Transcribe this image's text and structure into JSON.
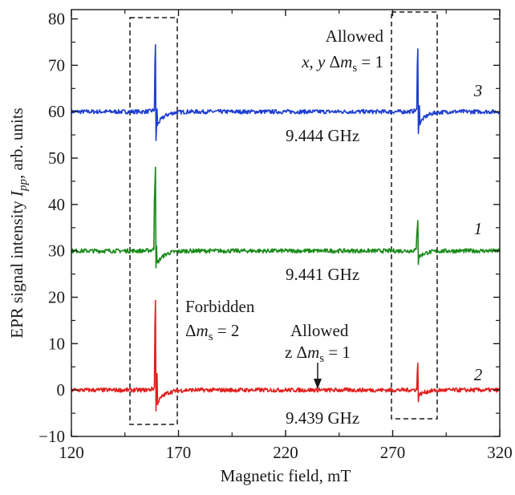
{
  "chart_data": {
    "type": "line",
    "title": "",
    "xlabel": "Magnetic field, mT",
    "ylabel_parts": [
      "EPR signal intensity ",
      "I",
      "pp",
      ", arb. units"
    ],
    "xlim": [
      120,
      320
    ],
    "ylim": [
      -10,
      82
    ],
    "xticks": [
      "120",
      "170",
      "220",
      "270",
      "320"
    ],
    "yticks": [
      "−10",
      "0",
      "10",
      "20",
      "30",
      "40",
      "50",
      "60",
      "70",
      "80"
    ],
    "grid": false,
    "colors": {
      "curve_3": "#1f3fd0",
      "curve_1": "#1a8a1a",
      "curve_2": "#e0201e"
    },
    "series": [
      {
        "name": "3",
        "frequency_label": "9.444 GHz",
        "baseline": 60,
        "features": [
          {
            "field": 159.5,
            "max": 77.0,
            "min": 53.8
          },
          {
            "field": 282.0,
            "max": 75.8,
            "min": 55.3
          }
        ]
      },
      {
        "name": "1",
        "frequency_label": "9.441 GHz",
        "baseline": 30,
        "features": [
          {
            "field": 159.3,
            "max": 48.0,
            "min": 25.0
          },
          {
            "field": 281.8,
            "max": 36.5,
            "min": 26.5
          }
        ]
      },
      {
        "name": "2",
        "frequency_label": "9.439 GHz",
        "baseline": 0,
        "features": [
          {
            "field": 159.4,
            "max": 19.3,
            "min": -4.5
          },
          {
            "field": 281.9,
            "max": 5.8,
            "min": -2.5
          },
          {
            "field": 236.0,
            "max": 0.5,
            "min": -0.2
          }
        ]
      }
    ],
    "annotations": {
      "allowed_xy_line1": "Allowed",
      "allowed_xy_line2_parts": [
        "x",
        ", ",
        "y",
        " Δ",
        "m",
        "s",
        " = 1"
      ],
      "forbidden_line1": "Forbidden",
      "forbidden_line2_parts": [
        "Δ",
        "m",
        "s",
        " = 2"
      ],
      "allowed_z_line1": "Allowed",
      "allowed_z_line2_parts": [
        "z Δ",
        "m",
        "s",
        " = 1"
      ]
    }
  }
}
